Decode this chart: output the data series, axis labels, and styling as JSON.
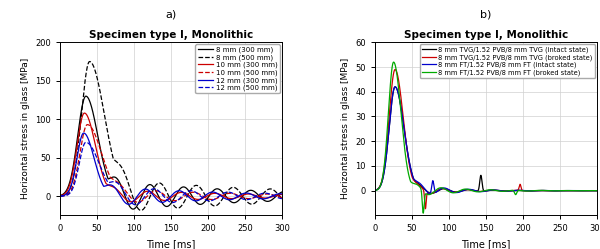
{
  "title_a": "Specimen type I, Monolithic",
  "title_b": "Specimen type I, Monolithic",
  "label_a": "a)",
  "label_b": "b)",
  "xlabel": "Time [ms]",
  "ylabel": "Horizontal stress in glass [MPa]",
  "ylim_a": [
    -25,
    200
  ],
  "ylim_b": [
    -10,
    60
  ],
  "yticks_a": [
    0,
    50,
    100,
    150,
    200
  ],
  "yticks_b": [
    0,
    10,
    20,
    30,
    40,
    50,
    60
  ],
  "xlim": [
    0,
    300
  ],
  "xticks": [
    0,
    50,
    100,
    150,
    200,
    250,
    300
  ],
  "legend_a": [
    {
      "label": "8 mm (300 mm)",
      "color": "#000000",
      "ls": "solid"
    },
    {
      "label": "8 mm (500 mm)",
      "color": "#000000",
      "ls": "dashed"
    },
    {
      "label": "10 mm (300 mm)",
      "color": "#cc0000",
      "ls": "solid"
    },
    {
      "label": "10 mm (500 mm)",
      "color": "#cc0000",
      "ls": "dashed"
    },
    {
      "label": "12 mm (300 mm)",
      "color": "#0000cc",
      "ls": "solid"
    },
    {
      "label": "12 mm (500 mm)",
      "color": "#0000cc",
      "ls": "dashed"
    }
  ],
  "legend_b": [
    {
      "label": "8 mm TVG/1.52 PVB/8 mm TVG (intact state)",
      "color": "#000000",
      "ls": "solid"
    },
    {
      "label": "8 mm TVG/1.52 PVB/8 mm TVG (broked state)",
      "color": "#cc0000",
      "ls": "solid"
    },
    {
      "label": "8 mm FT/1.52 PVB/8 mm FT (intact state)",
      "color": "#0000cc",
      "ls": "solid"
    },
    {
      "label": "8 mm FT/1.52 PVB/8 mm FT (broked state)",
      "color": "#00aa00",
      "ls": "solid"
    }
  ],
  "background": "#ffffff",
  "grid_color": "#d0d0d0"
}
